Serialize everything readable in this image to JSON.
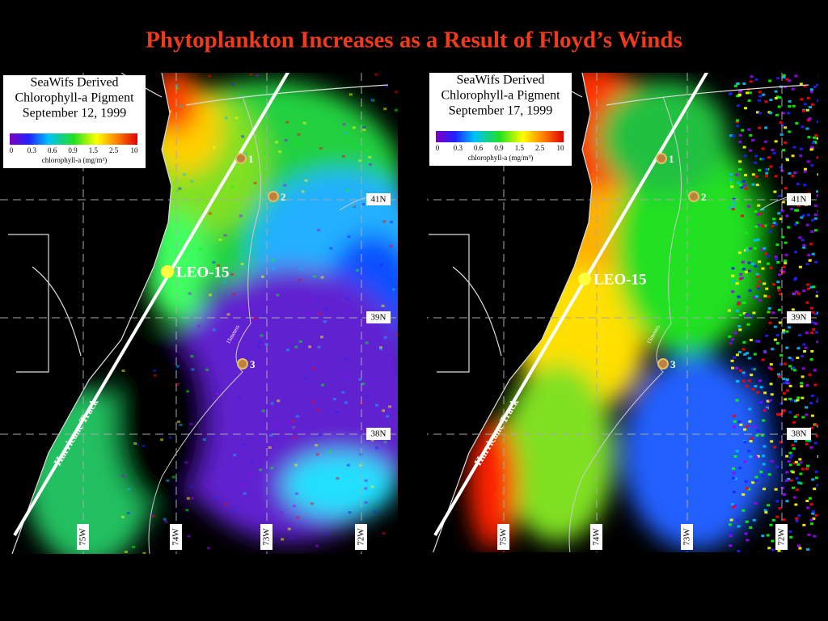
{
  "title": "Phytoplankton Increases as a Result of Floyd’s Winds",
  "panels": [
    {
      "legend": {
        "title_lines": [
          "SeaWifs Derived",
          "Chlorophyll-a Pigment",
          "September 12, 1999"
        ],
        "scale_labels": [
          "0",
          "0.3",
          "0.6",
          "0.9",
          "1.5",
          "2.5",
          "10"
        ],
        "unit": "chlorophyll-a (mg/m³)"
      },
      "stations": [
        "1",
        "2",
        "3"
      ],
      "site": "LEO-15",
      "track": "Hurricane Track",
      "isobath": "15meters",
      "latitudes": [
        "41N",
        "39N",
        "38N"
      ],
      "longitudes": [
        "75W",
        "74W",
        "73W",
        "72W"
      ]
    },
    {
      "legend": {
        "title_lines": [
          "SeaWifs Derived",
          "Chlorophyll-a Pigment",
          "September 17, 1999"
        ],
        "scale_labels": [
          "0",
          "0.3",
          "0.6",
          "0.9",
          "1.5",
          "2.5",
          "10"
        ],
        "unit": "chlorophyll-a (mg/m³)"
      },
      "stations": [
        "1",
        "2",
        "3"
      ],
      "site": "LEO-15",
      "track": "Hurricane Track",
      "isobath": "15meters",
      "latitudes": [
        "41N",
        "39N",
        "38N"
      ],
      "longitudes": [
        "75W",
        "74W",
        "73W",
        "72W"
      ]
    }
  ]
}
